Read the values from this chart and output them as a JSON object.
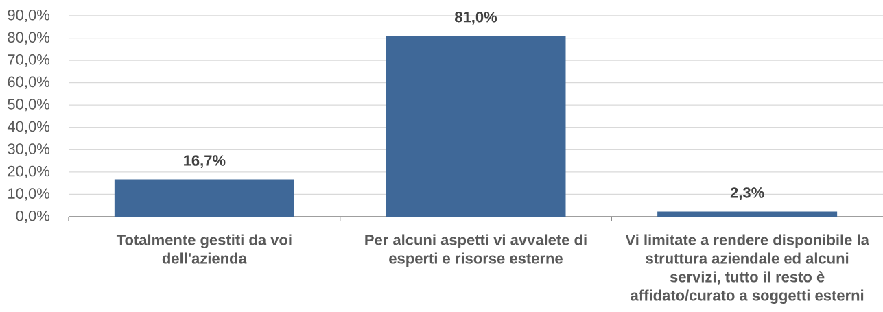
{
  "chart_data": {
    "type": "bar",
    "categories": [
      "Totalmente gestiti da voi dell'azienda",
      "Per alcuni aspetti vi avvalete di esperti e risorse esterne",
      "Vi limitate a rendere disponibile la struttura aziendale ed alcuni servizi, tutto il resto è affidato/curato a soggetti esterni"
    ],
    "values": [
      16.7,
      81.0,
      2.3
    ],
    "color": "#3f6898",
    "value_labels": [
      "16,7%",
      "81,0%",
      "2,3%"
    ],
    "ylim": [
      0,
      90
    ],
    "yticks": [
      {
        "value": 0,
        "label": "0,0%"
      },
      {
        "value": 10,
        "label": "10,0%"
      },
      {
        "value": 20,
        "label": "20,0%"
      },
      {
        "value": 30,
        "label": "30,0%"
      },
      {
        "value": 40,
        "label": "40,0%"
      },
      {
        "value": 50,
        "label": "50,0%"
      },
      {
        "value": 60,
        "label": "60,0%"
      },
      {
        "value": 70,
        "label": "70,0%"
      },
      {
        "value": 80,
        "label": "80,0%"
      },
      {
        "value": 90,
        "label": "90,0%"
      }
    ],
    "grid": "y"
  }
}
